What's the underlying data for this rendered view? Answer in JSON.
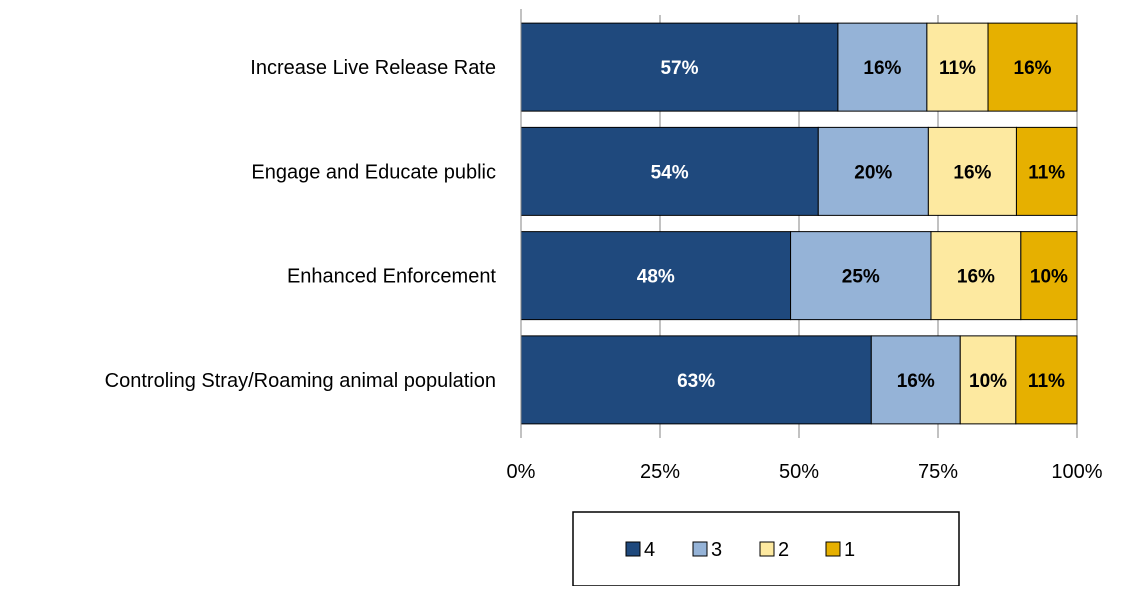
{
  "chart_data": {
    "type": "bar",
    "orientation": "horizontal",
    "stacked": true,
    "percent_stacked": true,
    "categories": [
      "Increase Live Release Rate",
      "Engage and Educate public",
      "Enhanced Enforcement",
      "Controling Stray/Roaming animal population"
    ],
    "series": [
      {
        "name": "4",
        "color": "#1f497d",
        "label_color": "#ffffff",
        "values": [
          57,
          54,
          48,
          63
        ]
      },
      {
        "name": "3",
        "color": "#95b3d7",
        "label_color": "#000000",
        "values": [
          16,
          20,
          25,
          16
        ]
      },
      {
        "name": "2",
        "color": "#fde9a0",
        "label_color": "#000000",
        "values": [
          11,
          16,
          16,
          10
        ]
      },
      {
        "name": "1",
        "color": "#e6b000",
        "label_color": "#000000",
        "values": [
          16,
          11,
          10,
          11
        ]
      }
    ],
    "xlim": [
      0,
      100
    ],
    "xticks": [
      "0%",
      "25%",
      "50%",
      "75%",
      "100%"
    ],
    "grid": "vertical",
    "legend": "bottom",
    "title": "",
    "xlabel": "",
    "ylabel": ""
  }
}
